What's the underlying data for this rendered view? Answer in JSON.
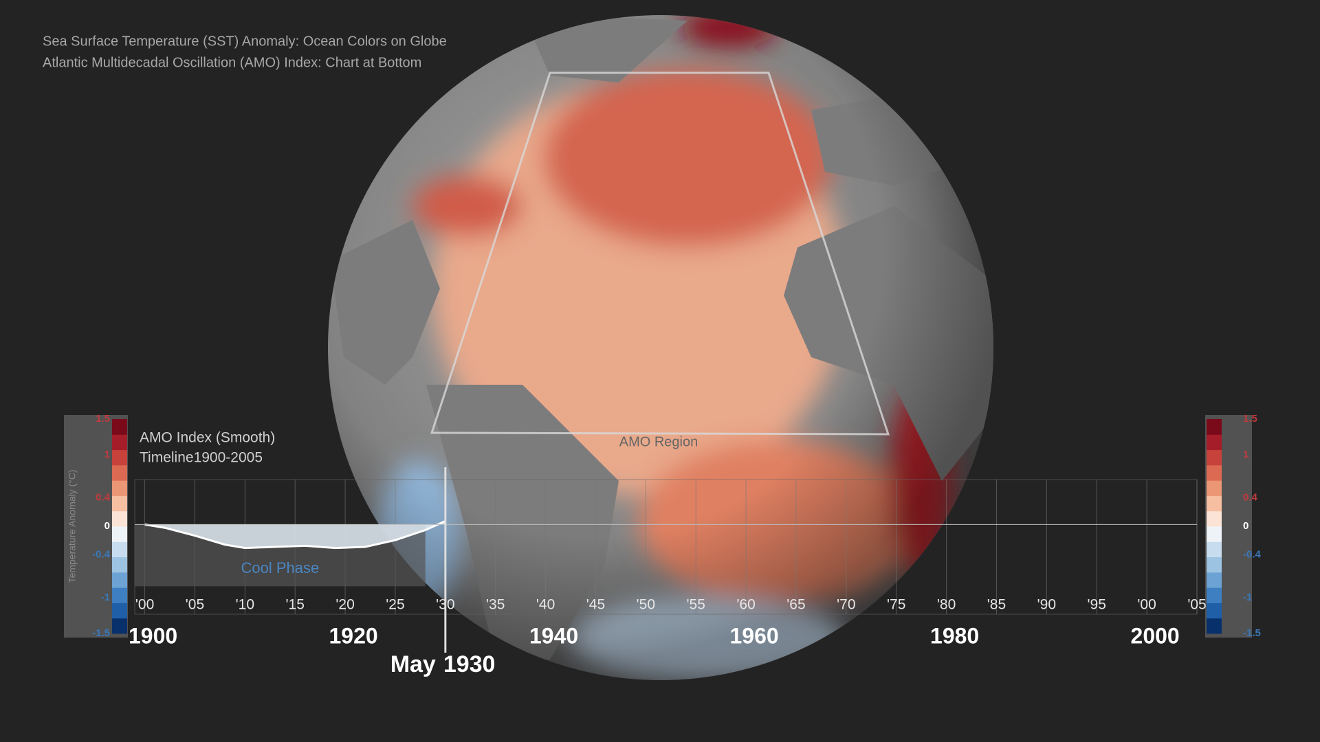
{
  "header": {
    "line1": "Sea Surface Temperature (SST) Anomaly: Ocean Colors on Globe",
    "line2": "Atlantic Multidecadal Oscillation (AMO) Index: Chart at Bottom"
  },
  "globe": {
    "region_label": "AMO Region"
  },
  "colorbar": {
    "axis_label": "Temperature Anomaly (°C)",
    "lim": [
      -1.5,
      1.5
    ],
    "ticks": [
      1.5,
      1.0,
      0.4,
      0,
      -0.4,
      -1.0,
      -1.5
    ],
    "colors": [
      "#08306b",
      "#1f5fa8",
      "#3d7fc0",
      "#6da3d4",
      "#9cc3e2",
      "#c7dcee",
      "#eef3f8",
      "#fbe3d6",
      "#f6bfa2",
      "#eb9675",
      "#dc6a52",
      "#c6423b",
      "#a61d2a",
      "#7a0a1a"
    ]
  },
  "chart_data": {
    "type": "area",
    "title": "AMO Index (Smooth)",
    "subtitle": "Timeline1900-2005",
    "annotation": "Cool Phase",
    "x": [
      1900,
      1902,
      1905,
      1908,
      1910,
      1913,
      1916,
      1919,
      1922,
      1925,
      1928,
      1930
    ],
    "values": [
      0,
      -0.03,
      -0.1,
      -0.18,
      -0.21,
      -0.2,
      -0.19,
      -0.21,
      -0.2,
      -0.14,
      -0.05,
      0.03
    ],
    "color": "#dfe9f2",
    "xlim": [
      1899,
      2005
    ],
    "ylim": [
      -0.8,
      0.4
    ],
    "xticks": [
      {
        "value": 1900,
        "label": "'00"
      },
      {
        "value": 1905,
        "label": "'05"
      },
      {
        "value": 1910,
        "label": "'10"
      },
      {
        "value": 1915,
        "label": "'15"
      },
      {
        "value": 1920,
        "label": "'20"
      },
      {
        "value": 1925,
        "label": "'25"
      },
      {
        "value": 1930,
        "label": "'30"
      },
      {
        "value": 1935,
        "label": "'35"
      },
      {
        "value": 1940,
        "label": "'40"
      },
      {
        "value": 1945,
        "label": "'45"
      },
      {
        "value": 1950,
        "label": "'50"
      },
      {
        "value": 1955,
        "label": "'55"
      },
      {
        "value": 1960,
        "label": "'60"
      },
      {
        "value": 1965,
        "label": "'65"
      },
      {
        "value": 1970,
        "label": "'70"
      },
      {
        "value": 1975,
        "label": "'75"
      },
      {
        "value": 1980,
        "label": "'80"
      },
      {
        "value": 1985,
        "label": "'85"
      },
      {
        "value": 1990,
        "label": "'90"
      },
      {
        "value": 1995,
        "label": "'95"
      },
      {
        "value": 2000,
        "label": "'00"
      },
      {
        "value": 2005,
        "label": "'05"
      }
    ],
    "decade_ticks": [
      1900,
      1920,
      1940,
      1960,
      1980,
      2000
    ],
    "current": {
      "month": "May",
      "year": 1930
    }
  }
}
